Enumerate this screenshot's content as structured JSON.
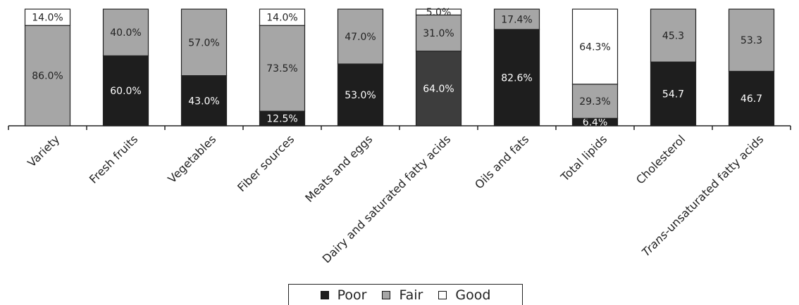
{
  "chart_data": {
    "type": "bar",
    "stacked": true,
    "categories": [
      "Variety",
      "Fresh fruits",
      "Vegetables",
      "Fiber sources",
      "Meats and eggs",
      "Dairy and saturated fatty acids",
      "Oils and fats",
      "Total lipids",
      "Cholesterol",
      "Trans-unsaturated fatty acids"
    ],
    "italic_prefix": {
      "9": "Trans"
    },
    "series": [
      {
        "name": "Poor",
        "color": "#1e1e1e",
        "values": [
          0,
          60.0,
          43.0,
          12.5,
          53.0,
          64.0,
          82.6,
          6.4,
          54.7,
          46.7
        ],
        "labels": [
          "",
          "60.0%",
          "43.0%",
          "12.5%",
          "53.0%",
          "64.0%",
          "82.6%",
          "6.4%",
          "54.7",
          "46.7"
        ]
      },
      {
        "name": "Fair",
        "color": "#a6a6a6",
        "values": [
          86.0,
          40.0,
          57.0,
          73.5,
          47.0,
          31.0,
          17.4,
          29.3,
          45.3,
          53.3
        ],
        "labels": [
          "86.0%",
          "40.0%",
          "57.0%",
          "73.5%",
          "47.0%",
          "31.0%",
          "17.4%",
          "29.3%",
          "45.3",
          "53.3"
        ]
      },
      {
        "name": "Good",
        "color": "#ffffff",
        "values": [
          14.0,
          0,
          0,
          14.0,
          0,
          5.0,
          0,
          64.3,
          0,
          0
        ],
        "labels": [
          "14.0%",
          "",
          "",
          "14.0%",
          "",
          "5.0%",
          "",
          "64.3%",
          "",
          ""
        ]
      }
    ],
    "special_colors": {
      "5": {
        "Poor": "#3d3d3d"
      }
    },
    "ylim": [
      0,
      100
    ],
    "title": "",
    "xlabel": "",
    "ylabel": "",
    "legend": "bottom-center",
    "grid": false
  },
  "legend": {
    "items": [
      {
        "label": "Poor",
        "color": "#1e1e1e"
      },
      {
        "label": "Fair",
        "color": "#a6a6a6"
      },
      {
        "label": "Good",
        "color": "#ffffff"
      }
    ]
  }
}
